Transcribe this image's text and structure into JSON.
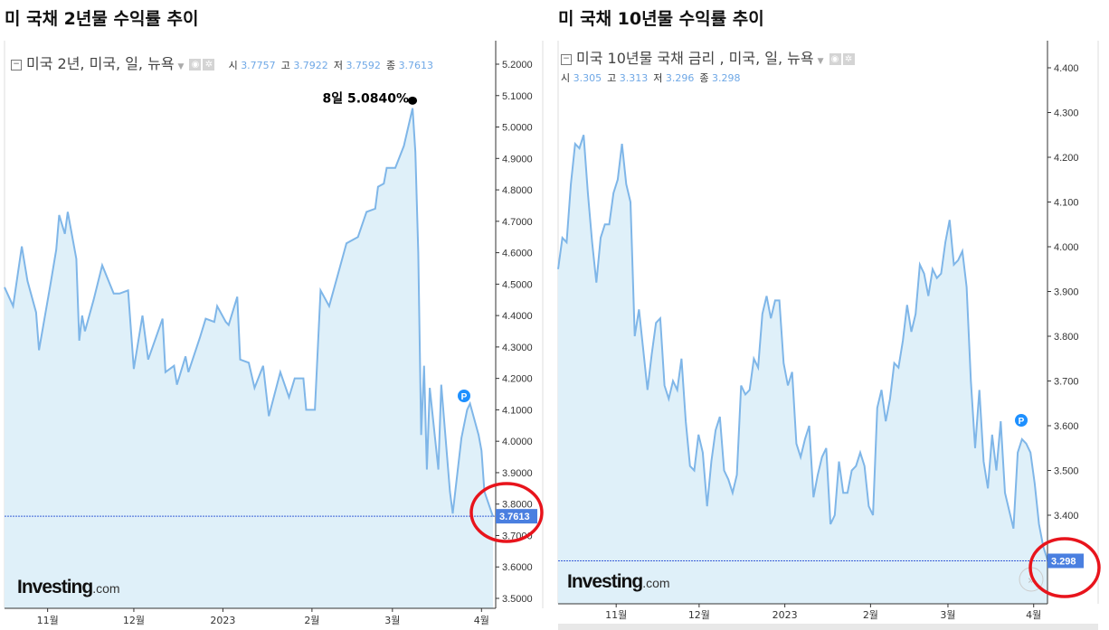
{
  "left": {
    "title": "미 국채 2년물 수익률 추이",
    "instrument": "미국 2년, 미국, 일, 뉴욕",
    "ohlc": [
      {
        "k": "시",
        "v": "3.7757"
      },
      {
        "k": "고",
        "v": "3.7922"
      },
      {
        "k": "저",
        "v": "3.7592"
      },
      {
        "k": "종",
        "v": "3.7613"
      }
    ],
    "last_price": "3.7613",
    "annotation": "8일 5.0840%",
    "logo": "Investing",
    "logo_suffix": ".com",
    "marker": "P"
  },
  "right": {
    "title": "미 국채 10년물 수익률 추이",
    "instrument": "미국 10년물 국채 금리 , 미국, 일, 뉴욕",
    "ohlc": [
      {
        "k": "시",
        "v": "3.305"
      },
      {
        "k": "고",
        "v": "3.313"
      },
      {
        "k": "저",
        "v": "3.296"
      },
      {
        "k": "종",
        "v": "3.298"
      }
    ],
    "last_price": "3.298",
    "logo": "Investing",
    "logo_suffix": ".com",
    "marker": "P",
    "scroll_icon": "double-chevron-right-icon"
  },
  "colors": {
    "line": "#7fb6e8",
    "fill": "#dff0f9",
    "price_tag": "#4a7fe0",
    "highlight_circle": "#e8141c",
    "axis": "#333333"
  },
  "chart_data": [
    {
      "type": "area",
      "title": "미 국채 2년물 수익률 추이",
      "x_type": "date",
      "xlim": [
        "2022-10-17",
        "2023-04-05"
      ],
      "ylim": [
        3.45,
        5.25
      ],
      "y_ticks": [
        "5.2000",
        "5.1000",
        "5.0000",
        "4.9000",
        "4.8000",
        "4.7000",
        "4.6000",
        "4.5000",
        "4.4000",
        "4.3000",
        "4.2000",
        "4.1000",
        "4.0000",
        "3.9000",
        "3.8000",
        "3.7000",
        "3.6000",
        "3.5000"
      ],
      "x_ticks": [
        {
          "label": "11월",
          "date": "2022-11-01"
        },
        {
          "label": "12월",
          "date": "2022-12-01"
        },
        {
          "label": "2023",
          "date": "2023-01-01"
        },
        {
          "label": "2월",
          "date": "2023-02-01"
        },
        {
          "label": "3월",
          "date": "2023-03-01"
        },
        {
          "label": "4월",
          "date": "2023-04-01"
        }
      ],
      "grid": false,
      "last_value": 3.7613,
      "peak": {
        "date": "2023-03-08",
        "value": 5.084
      },
      "series": [
        {
          "points": [
            [
              "2022-10-17",
              4.49
            ],
            [
              "2022-10-20",
              4.43
            ],
            [
              "2022-10-23",
              4.62
            ],
            [
              "2022-10-25",
              4.51
            ],
            [
              "2022-10-28",
              4.41
            ],
            [
              "2022-10-29",
              4.29
            ],
            [
              "2022-11-02",
              4.5
            ],
            [
              "2022-11-04",
              4.61
            ],
            [
              "2022-11-05",
              4.72
            ],
            [
              "2022-11-07",
              4.66
            ],
            [
              "2022-11-08",
              4.73
            ],
            [
              "2022-11-11",
              4.58
            ],
            [
              "2022-11-12",
              4.32
            ],
            [
              "2022-11-13",
              4.4
            ],
            [
              "2022-11-14",
              4.35
            ],
            [
              "2022-11-17",
              4.45
            ],
            [
              "2022-11-20",
              4.56
            ],
            [
              "2022-11-24",
              4.47
            ],
            [
              "2022-11-26",
              4.47
            ],
            [
              "2022-11-29",
              4.48
            ],
            [
              "2022-12-01",
              4.23
            ],
            [
              "2022-12-04",
              4.4
            ],
            [
              "2022-12-06",
              4.26
            ],
            [
              "2022-12-11",
              4.39
            ],
            [
              "2022-12-12",
              4.22
            ],
            [
              "2022-12-15",
              4.24
            ],
            [
              "2022-12-16",
              4.18
            ],
            [
              "2022-12-19",
              4.27
            ],
            [
              "2022-12-20",
              4.22
            ],
            [
              "2022-12-24",
              4.33
            ],
            [
              "2022-12-26",
              4.39
            ],
            [
              "2022-12-29",
              4.38
            ],
            [
              "2022-12-30",
              4.43
            ],
            [
              "2023-01-02",
              4.38
            ],
            [
              "2023-01-03",
              4.37
            ],
            [
              "2023-01-06",
              4.46
            ],
            [
              "2023-01-07",
              4.26
            ],
            [
              "2023-01-10",
              4.25
            ],
            [
              "2023-01-12",
              4.17
            ],
            [
              "2023-01-15",
              4.24
            ],
            [
              "2023-01-17",
              4.08
            ],
            [
              "2023-01-21",
              4.22
            ],
            [
              "2023-01-24",
              4.14
            ],
            [
              "2023-01-26",
              4.2
            ],
            [
              "2023-01-29",
              4.2
            ],
            [
              "2023-01-30",
              4.1
            ],
            [
              "2023-02-02",
              4.1
            ],
            [
              "2023-02-04",
              4.48
            ],
            [
              "2023-02-07",
              4.43
            ],
            [
              "2023-02-10",
              4.53
            ],
            [
              "2023-02-13",
              4.63
            ],
            [
              "2023-02-17",
              4.65
            ],
            [
              "2023-02-20",
              4.73
            ],
            [
              "2023-02-23",
              4.74
            ],
            [
              "2023-02-24",
              4.81
            ],
            [
              "2023-02-26",
              4.82
            ],
            [
              "2023-02-27",
              4.87
            ],
            [
              "2023-03-02",
              4.87
            ],
            [
              "2023-03-05",
              4.94
            ],
            [
              "2023-03-08",
              5.06
            ],
            [
              "2023-03-09",
              4.92
            ],
            [
              "2023-03-10",
              4.6
            ],
            [
              "2023-03-11",
              4.02
            ],
            [
              "2023-03-12",
              4.24
            ],
            [
              "2023-03-13",
              3.91
            ],
            [
              "2023-03-14",
              4.17
            ],
            [
              "2023-03-17",
              3.91
            ],
            [
              "2023-03-18",
              4.18
            ],
            [
              "2023-03-21",
              3.84
            ],
            [
              "2023-03-22",
              3.77
            ],
            [
              "2023-03-25",
              4.01
            ],
            [
              "2023-03-27",
              4.1
            ],
            [
              "2023-03-28",
              4.12
            ],
            [
              "2023-03-31",
              4.02
            ],
            [
              "2023-04-01",
              3.97
            ],
            [
              "2023-04-02",
              3.84
            ],
            [
              "2023-04-05",
              3.76
            ]
          ]
        }
      ]
    },
    {
      "type": "area",
      "title": "미 국채 10년물 수익률 추이",
      "x_type": "date",
      "xlim": [
        "2022-10-11",
        "2023-04-06"
      ],
      "ylim": [
        3.2,
        4.46
      ],
      "y_ticks": [
        "4.400",
        "4.300",
        "4.200",
        "4.100",
        "4.000",
        "3.900",
        "3.800",
        "3.700",
        "3.600",
        "3.500",
        "3.400"
      ],
      "x_ticks": [
        {
          "label": "11월",
          "date": "2022-11-01"
        },
        {
          "label": "12월",
          "date": "2022-12-01"
        },
        {
          "label": "2023",
          "date": "2023-01-01"
        },
        {
          "label": "2월",
          "date": "2023-02-01"
        },
        {
          "label": "3월",
          "date": "2023-03-01"
        },
        {
          "label": "4월",
          "date": "2023-04-01"
        }
      ],
      "grid": false,
      "last_value": 3.298,
      "series": [
        {
          "values": [
            3.95,
            4.02,
            4.01,
            4.14,
            4.23,
            4.22,
            4.25,
            4.12,
            4.01,
            3.92,
            4.02,
            4.05,
            4.05,
            4.12,
            4.15,
            4.23,
            4.14,
            4.1,
            3.8,
            3.86,
            3.77,
            3.68,
            3.76,
            3.83,
            3.84,
            3.69,
            3.66,
            3.7,
            3.68,
            3.75,
            3.61,
            3.51,
            3.5,
            3.58,
            3.54,
            3.42,
            3.52,
            3.59,
            3.62,
            3.5,
            3.48,
            3.45,
            3.49,
            3.69,
            3.67,
            3.68,
            3.75,
            3.73,
            3.85,
            3.89,
            3.84,
            3.88,
            3.88,
            3.74,
            3.69,
            3.72,
            3.56,
            3.53,
            3.57,
            3.6,
            3.44,
            3.49,
            3.53,
            3.55,
            3.38,
            3.4,
            3.52,
            3.45,
            3.45,
            3.5,
            3.51,
            3.54,
            3.51,
            3.42,
            3.4,
            3.64,
            3.68,
            3.61,
            3.66,
            3.74,
            3.73,
            3.79,
            3.87,
            3.81,
            3.85,
            3.96,
            3.94,
            3.89,
            3.95,
            3.93,
            3.94,
            4.01,
            4.06,
            3.96,
            3.97,
            3.99,
            3.91,
            3.7,
            3.55,
            3.68,
            3.52,
            3.46,
            3.58,
            3.5,
            3.61,
            3.45,
            3.41,
            3.37,
            3.54,
            3.57,
            3.56,
            3.54,
            3.47,
            3.38,
            3.33,
            3.3
          ]
        }
      ]
    }
  ]
}
